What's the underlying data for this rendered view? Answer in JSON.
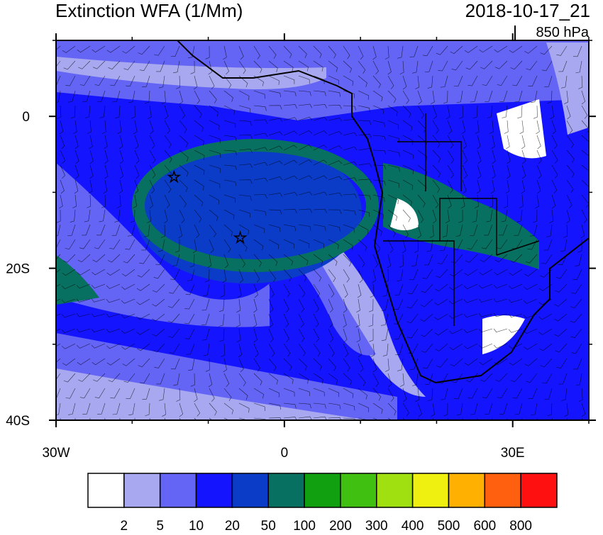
{
  "map": {
    "title": "Extinction WFA (1/Mm)",
    "time": "2018-10-17_21",
    "level": "850 hPa",
    "xlim": [
      -30,
      40
    ],
    "ylim": [
      -40,
      10
    ],
    "xticks": [
      {
        "value": -30,
        "label": "30W"
      },
      0,
      {
        "value": 30,
        "label": "30E"
      }
    ],
    "yticks": [
      0,
      {
        "value": -20,
        "label": "20S"
      },
      {
        "value": -40,
        "label": "40S"
      }
    ],
    "xminor": [
      -20,
      -10,
      10,
      20,
      40
    ],
    "yminor": [
      10,
      -10,
      -30
    ],
    "markers": [
      {
        "lon": -14.5,
        "lat": -8
      },
      {
        "lon": -5.8,
        "lat": -16
      }
    ]
  },
  "colorbar": {
    "levels": [
      2,
      5,
      10,
      20,
      50,
      100,
      200,
      300,
      400,
      500,
      600,
      800
    ],
    "colors": [
      "#ffffff",
      "#a8a8f0",
      "#6464f5",
      "#1414ff",
      "#0a3cc8",
      "#087060",
      "#10a010",
      "#40c010",
      "#a0e010",
      "#f0f010",
      "#ffb000",
      "#ff6010",
      "#ff1010"
    ]
  }
}
